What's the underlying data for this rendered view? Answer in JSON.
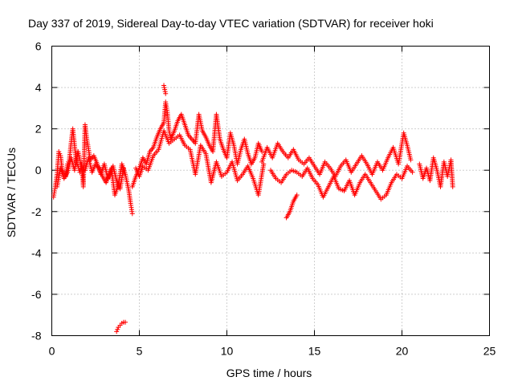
{
  "chart_data": {
    "type": "scatter",
    "title": "Day 337 of 2019, Sidereal Day-to-day VTEC variation (SDTVAR) for receiver hoki",
    "xlabel": "GPS time / hours",
    "ylabel": "SDTVAR / TECUs",
    "xlim": [
      0,
      25
    ],
    "ylim": [
      -8,
      6
    ],
    "xticks": [
      0,
      5,
      10,
      15,
      20,
      25
    ],
    "yticks": [
      -8,
      -6,
      -4,
      -2,
      0,
      2,
      4,
      6
    ],
    "xtick_labels": [
      "0",
      "5",
      "10",
      "15",
      "20",
      "25"
    ],
    "ytick_labels": [
      "-8",
      "-6",
      "-4",
      "-2",
      "0",
      "2",
      "4",
      "6"
    ],
    "grid": true,
    "marker": "+",
    "color": "#ff0000",
    "series": [
      {
        "name": "SDTVAR",
        "segments": [
          [
            [
              0.1,
              -1.3
            ],
            [
              0.2,
              -0.8
            ],
            [
              0.3,
              -0.2
            ],
            [
              0.4,
              0.9
            ],
            [
              0.5,
              0.7
            ],
            [
              0.6,
              0.0
            ],
            [
              0.8,
              -0.3
            ],
            [
              0.9,
              0.3
            ],
            [
              1.0,
              0.5
            ],
            [
              1.1,
              1.3
            ],
            [
              1.2,
              2.0
            ],
            [
              1.3,
              1.2
            ],
            [
              1.4,
              0.4
            ],
            [
              1.5,
              0.2
            ],
            [
              1.6,
              -0.1
            ],
            [
              1.7,
              0.3
            ],
            [
              1.8,
              -0.8
            ],
            [
              1.9,
              2.2
            ],
            [
              2.0,
              1.5
            ],
            [
              2.2,
              0.5
            ],
            [
              2.4,
              0.7
            ],
            [
              2.6,
              0.3
            ],
            [
              2.8,
              -0.2
            ],
            [
              3.0,
              0.3
            ],
            [
              3.2,
              -0.4
            ],
            [
              3.4,
              0.1
            ],
            [
              3.6,
              -1.2
            ],
            [
              3.8,
              -0.7
            ],
            [
              4.0,
              0.3
            ],
            [
              4.2,
              -0.2
            ],
            [
              4.4,
              -1.0
            ],
            [
              4.5,
              -1.6
            ],
            [
              4.6,
              -2.1
            ]
          ],
          [
            [
              0.3,
              -0.8
            ],
            [
              0.5,
              0.1
            ],
            [
              0.7,
              -0.4
            ],
            [
              0.9,
              -0.1
            ],
            [
              1.1,
              0.6
            ],
            [
              1.3,
              0.0
            ],
            [
              1.5,
              0.9
            ],
            [
              1.7,
              0.1
            ],
            [
              1.9,
              0.0
            ],
            [
              2.1,
              0.6
            ],
            [
              2.3,
              -0.1
            ],
            [
              2.5,
              0.3
            ],
            [
              2.7,
              0.1
            ],
            [
              2.9,
              -0.3
            ],
            [
              3.1,
              -0.6
            ],
            [
              3.3,
              -0.2
            ],
            [
              3.5,
              0.2
            ],
            [
              3.7,
              -0.5
            ],
            [
              3.9,
              -0.9
            ],
            [
              4.1,
              0.1
            ]
          ],
          [
            [
              4.6,
              -0.8
            ],
            [
              4.8,
              -0.3
            ],
            [
              5.0,
              0.1
            ],
            [
              5.2,
              0.6
            ],
            [
              5.4,
              0.3
            ],
            [
              5.6,
              0.9
            ],
            [
              5.8,
              1.1
            ],
            [
              6.0,
              1.6
            ],
            [
              6.2,
              2.0
            ],
            [
              6.4,
              2.3
            ],
            [
              6.5,
              3.3
            ],
            [
              6.6,
              2.8
            ],
            [
              6.7,
              1.9
            ],
            [
              6.8,
              1.5
            ],
            [
              7.0,
              1.9
            ],
            [
              7.2,
              2.4
            ],
            [
              7.4,
              2.7
            ],
            [
              7.6,
              2.2
            ],
            [
              7.8,
              1.7
            ],
            [
              8.0,
              1.5
            ],
            [
              8.2,
              1.3
            ],
            [
              8.4,
              2.7
            ],
            [
              8.6,
              1.9
            ],
            [
              8.8,
              1.6
            ],
            [
              9.0,
              1.2
            ],
            [
              9.2,
              0.9
            ],
            [
              9.4,
              2.7
            ],
            [
              9.6,
              1.5
            ],
            [
              9.8,
              1.0
            ],
            [
              10.0,
              0.6
            ],
            [
              10.2,
              1.8
            ],
            [
              10.4,
              1.2
            ],
            [
              10.6,
              0.3
            ],
            [
              10.8,
              1.0
            ],
            [
              11.0,
              1.5
            ],
            [
              11.2,
              0.8
            ],
            [
              11.4,
              0.3
            ],
            [
              11.6,
              0.6
            ],
            [
              11.8,
              1.3
            ],
            [
              12.0,
              0.9
            ]
          ],
          [
            [
              4.8,
              0.1
            ],
            [
              5.0,
              -0.3
            ],
            [
              5.2,
              0.2
            ],
            [
              5.5,
              0.0
            ],
            [
              5.8,
              0.7
            ],
            [
              6.1,
              1.0
            ],
            [
              6.4,
              1.9
            ],
            [
              6.7,
              1.3
            ],
            [
              7.0,
              1.5
            ],
            [
              7.3,
              1.7
            ],
            [
              7.6,
              1.2
            ],
            [
              7.9,
              1.0
            ],
            [
              8.2,
              -0.2
            ],
            [
              8.5,
              1.2
            ],
            [
              8.8,
              0.8
            ],
            [
              9.1,
              -0.6
            ],
            [
              9.4,
              0.4
            ],
            [
              9.7,
              -0.3
            ],
            [
              10.0,
              -0.1
            ],
            [
              10.3,
              0.4
            ],
            [
              10.6,
              -0.5
            ],
            [
              10.9,
              -0.2
            ],
            [
              11.2,
              0.2
            ],
            [
              11.5,
              -0.4
            ],
            [
              11.8,
              -1.2
            ],
            [
              12.1,
              0.3
            ]
          ],
          [
            [
              12.0,
              0.4
            ],
            [
              12.3,
              1.1
            ],
            [
              12.6,
              0.6
            ],
            [
              12.9,
              1.3
            ],
            [
              13.2,
              0.9
            ],
            [
              13.5,
              0.6
            ],
            [
              13.8,
              1.0
            ],
            [
              14.1,
              0.5
            ],
            [
              14.4,
              0.3
            ],
            [
              14.7,
              0.6
            ],
            [
              15.0,
              0.2
            ],
            [
              15.3,
              -0.2
            ],
            [
              15.6,
              0.4
            ],
            [
              15.9,
              0.1
            ],
            [
              16.2,
              -0.3
            ],
            [
              16.5,
              0.2
            ],
            [
              16.8,
              0.5
            ],
            [
              17.1,
              -0.1
            ],
            [
              17.4,
              0.3
            ],
            [
              17.7,
              0.7
            ],
            [
              18.0,
              0.3
            ],
            [
              18.3,
              -0.2
            ],
            [
              18.6,
              0.4
            ],
            [
              18.9,
              0.0
            ],
            [
              19.2,
              0.6
            ],
            [
              19.5,
              1.1
            ],
            [
              19.8,
              0.3
            ],
            [
              20.1,
              1.8
            ],
            [
              20.3,
              1.2
            ],
            [
              20.5,
              0.5
            ]
          ],
          [
            [
              12.5,
              0.0
            ],
            [
              12.8,
              -0.4
            ],
            [
              13.1,
              -0.6
            ],
            [
              13.4,
              -0.2
            ],
            [
              13.7,
              0.0
            ],
            [
              14.0,
              -0.1
            ],
            [
              14.3,
              -0.3
            ],
            [
              14.6,
              0.1
            ],
            [
              14.9,
              -0.4
            ],
            [
              15.2,
              -0.7
            ],
            [
              15.5,
              -1.3
            ],
            [
              15.8,
              -0.8
            ],
            [
              16.1,
              -0.3
            ],
            [
              16.4,
              -0.9
            ],
            [
              16.7,
              -1.0
            ],
            [
              17.0,
              -0.5
            ],
            [
              17.3,
              -1.2
            ],
            [
              17.6,
              -0.6
            ],
            [
              17.9,
              -0.2
            ],
            [
              18.2,
              -0.6
            ],
            [
              18.5,
              -1.0
            ],
            [
              18.8,
              -1.4
            ],
            [
              19.1,
              -1.2
            ],
            [
              19.4,
              -0.6
            ],
            [
              19.7,
              -0.2
            ],
            [
              20.0,
              -0.4
            ],
            [
              20.3,
              0.2
            ],
            [
              20.6,
              -0.1
            ]
          ],
          [
            [
              13.4,
              -2.3
            ],
            [
              13.6,
              -2.0
            ],
            [
              13.8,
              -1.5
            ],
            [
              14.0,
              -1.2
            ]
          ],
          [
            [
              21.0,
              0.3
            ],
            [
              21.2,
              -0.4
            ],
            [
              21.4,
              0.1
            ],
            [
              21.6,
              -0.5
            ],
            [
              21.8,
              0.6
            ],
            [
              22.0,
              0.0
            ],
            [
              22.2,
              -0.8
            ],
            [
              22.4,
              0.4
            ],
            [
              22.6,
              -0.3
            ],
            [
              22.8,
              0.5
            ],
            [
              22.9,
              -0.8
            ]
          ],
          [
            [
              3.7,
              -7.8
            ],
            [
              3.8,
              -7.6
            ],
            [
              3.9,
              -7.5
            ],
            [
              4.0,
              -7.4
            ],
            [
              4.1,
              -7.35
            ],
            [
              4.2,
              -7.35
            ]
          ],
          [
            [
              6.4,
              4.1
            ],
            [
              6.5,
              3.7
            ]
          ]
        ]
      }
    ]
  }
}
